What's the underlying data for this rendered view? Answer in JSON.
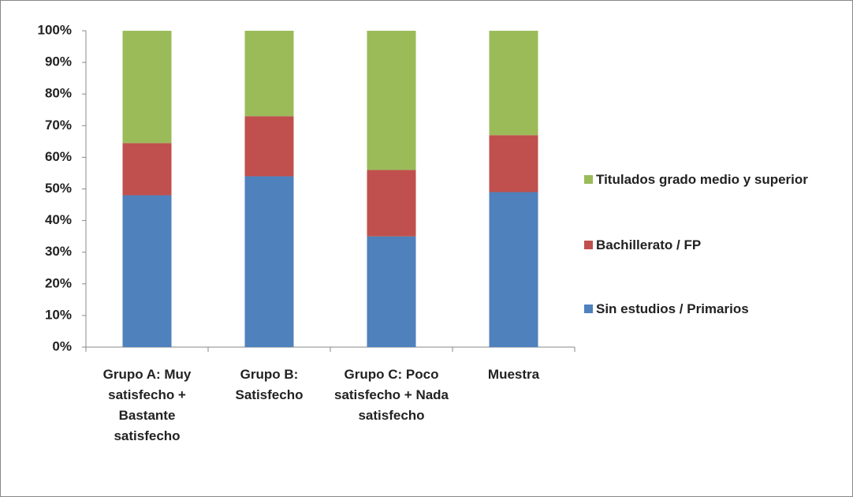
{
  "chart_data": {
    "type": "stacked_bar_100",
    "categories": [
      "Grupo A: Muy satisfecho + Bastante satisfecho",
      "Grupo B: Satisfecho",
      "Grupo C: Poco satisfecho + Nada satisfecho",
      "Muestra"
    ],
    "series": [
      {
        "name": "Sin estudios / Primarios",
        "color": "#4f81bd",
        "values": [
          48,
          54,
          35,
          49
        ]
      },
      {
        "name": "Bachillerato / FP",
        "color": "#c0504d",
        "values": [
          16.5,
          19,
          21,
          18
        ]
      },
      {
        "name": "Titulados grado medio y superior",
        "color": "#9bbb59",
        "values": [
          35.5,
          27,
          44,
          33
        ]
      }
    ],
    "ylim": [
      0,
      100
    ],
    "yticks": [
      {
        "value": 0,
        "label": "0%"
      },
      {
        "value": 10,
        "label": "10%"
      },
      {
        "value": 20,
        "label": "20%"
      },
      {
        "value": 30,
        "label": "30%"
      },
      {
        "value": 40,
        "label": "40%"
      },
      {
        "value": 50,
        "label": "50%"
      },
      {
        "value": 60,
        "label": "60%"
      },
      {
        "value": 70,
        "label": "70%"
      },
      {
        "value": 80,
        "label": "80%"
      },
      {
        "value": 90,
        "label": "90%"
      },
      {
        "value": 100,
        "label": "100%"
      }
    ],
    "grid": false,
    "legend": "right"
  }
}
